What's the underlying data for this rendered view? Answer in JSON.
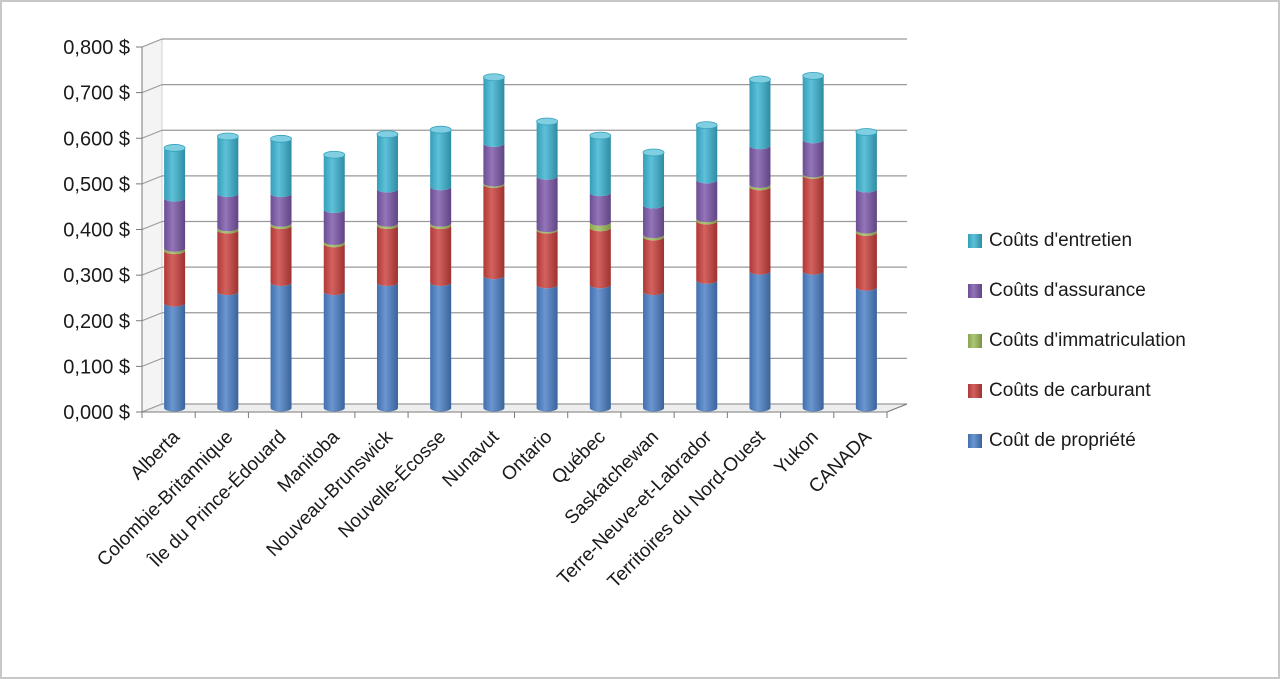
{
  "chart_data": {
    "type": "bar",
    "stacked": true,
    "style": "3d-cylinder",
    "categories": [
      "Alberta",
      "Colombie-Britannique",
      "Île du Prince-Édouard",
      "Manitoba",
      "Nouveau-Brunswick",
      "Nouvelle-Écosse",
      "Nunavut",
      "Ontario",
      "Québec",
      "Saskatchewan",
      "Terre-Neuve-et-Labrador",
      "Territoires du Nord-Ouest",
      "Yukon",
      "CANADA"
    ],
    "series": [
      {
        "name": "Coût de propriété",
        "color": "#4a7fc6",
        "values": [
          0.23,
          0.255,
          0.275,
          0.255,
          0.275,
          0.275,
          0.29,
          0.27,
          0.27,
          0.255,
          0.28,
          0.3,
          0.3,
          0.265
        ]
      },
      {
        "name": "Coûts de carburant",
        "color": "#c9403c",
        "values": [
          0.115,
          0.135,
          0.125,
          0.105,
          0.125,
          0.125,
          0.2,
          0.12,
          0.125,
          0.12,
          0.13,
          0.185,
          0.21,
          0.12
        ]
      },
      {
        "name": "Coûts d'immatriculation",
        "color": "#9bbb59",
        "values": [
          0.005,
          0.005,
          0.005,
          0.005,
          0.005,
          0.005,
          0.003,
          0.003,
          0.012,
          0.005,
          0.005,
          0.005,
          0.003,
          0.005
        ]
      },
      {
        "name": "Coûts d'assurance",
        "color": "#7b57a8",
        "values": [
          0.11,
          0.075,
          0.065,
          0.07,
          0.075,
          0.08,
          0.087,
          0.115,
          0.065,
          0.065,
          0.085,
          0.085,
          0.075,
          0.09
        ]
      },
      {
        "name": "Coûts d'entretien",
        "color": "#3bb3d1",
        "values": [
          0.11,
          0.125,
          0.12,
          0.12,
          0.12,
          0.125,
          0.145,
          0.12,
          0.125,
          0.115,
          0.12,
          0.145,
          0.14,
          0.125
        ]
      }
    ],
    "legend_order": [
      "Coûts d'entretien",
      "Coûts d'assurance",
      "Coûts d'immatriculation",
      "Coûts de carburant",
      "Coût de propriété"
    ],
    "ylim": [
      0,
      0.8
    ],
    "yticks": [
      "0,000 $",
      "0,100 $",
      "0,200 $",
      "0,300 $",
      "0,400 $",
      "0,500 $",
      "0,600 $",
      "0,700 $",
      "0,800 $"
    ],
    "title": "",
    "xlabel": "",
    "ylabel": "",
    "grid": true,
    "legend_position": "right"
  }
}
